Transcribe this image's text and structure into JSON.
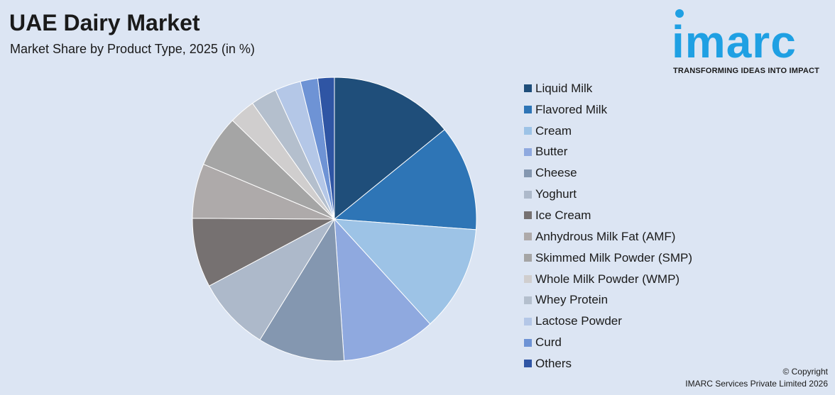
{
  "header": {
    "title": "UAE Dairy Market",
    "subtitle": "Market Share by Product Type, 2025 (in %)"
  },
  "logo": {
    "wordmark": "imarc",
    "tagline": "TRANSFORMING IDEAS INTO IMPACT",
    "color": "#1fa0e3"
  },
  "footer": {
    "copyright_line1": "© Copyright",
    "copyright_line2": "IMARC Services Private Limited 2026"
  },
  "chart_data": {
    "type": "pie",
    "title": "UAE Dairy Market",
    "subtitle": "Market Share by Product Type, 2025 (in %)",
    "unit": "%",
    "start_angle_deg": 0,
    "direction": "clockwise",
    "legend_position": "right",
    "categories": [
      "Liquid Milk",
      "Flavored Milk",
      "Cream",
      "Butter",
      "Cheese",
      "Yoghurt",
      "Ice Cream",
      "Anhydrous Milk Fat (AMF)",
      "Skimmed Milk Powder (SMP)",
      "Whole Milk Powder (WMP)",
      "Whey Protein",
      "Lactose Powder",
      "Curd",
      "Others"
    ],
    "values": [
      14.3,
      12.2,
      12.2,
      10.8,
      10.0,
      8.5,
      8.0,
      6.3,
      6.0,
      3.0,
      3.0,
      3.0,
      2.0,
      1.9
    ],
    "colors": [
      "#1f4e7a",
      "#2e75b6",
      "#9dc3e6",
      "#8fa9df",
      "#8497b0",
      "#adb9ca",
      "#767171",
      "#aeaaaa",
      "#a5a5a5",
      "#d0cece",
      "#b4bfcd",
      "#b4c7e7",
      "#6e93d5",
      "#2f55a4"
    ]
  }
}
